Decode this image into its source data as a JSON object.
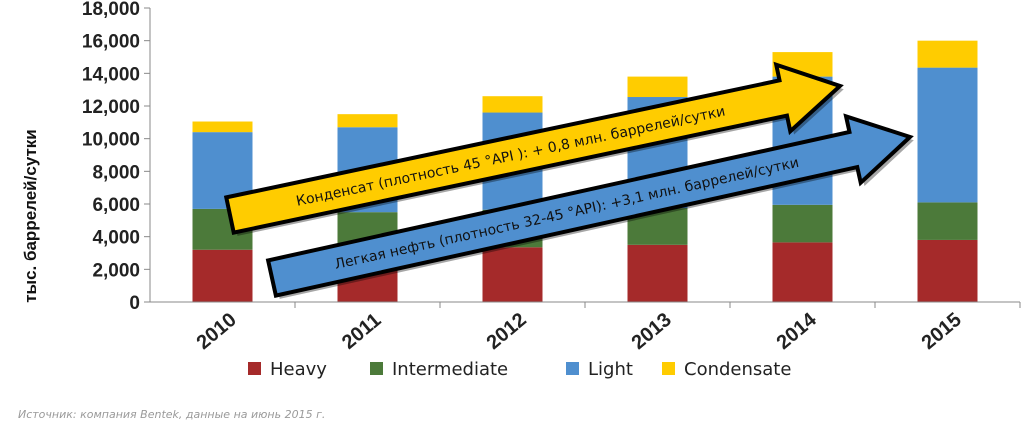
{
  "chart_data": {
    "type": "bar",
    "stacked": true,
    "categories": [
      "2010",
      "2011",
      "2012",
      "2013",
      "2014",
      "2015"
    ],
    "series": [
      {
        "name": "Heavy",
        "values": [
          3200,
          3100,
          3350,
          3500,
          3650,
          3800
        ]
      },
      {
        "name": "Intermediate",
        "values": [
          2500,
          2400,
          2300,
          2250,
          2300,
          2300
        ]
      },
      {
        "name": "Light",
        "values": [
          4700,
          5200,
          5950,
          6800,
          7850,
          8250
        ]
      },
      {
        "name": "Condensate",
        "values": [
          650,
          800,
          1000,
          1250,
          1500,
          1650
        ]
      }
    ],
    "ylabel": "тыс. баррелей/сутки",
    "ylim": [
      0,
      18000
    ],
    "yticks": [
      "0",
      "2,000",
      "4,000",
      "6,000",
      "8,000",
      "10,000",
      "12,000",
      "14,000",
      "16,000",
      "18,000"
    ],
    "legend_position": "bottom",
    "grid": false
  },
  "colors": {
    "Heavy": "#A52A2A",
    "Intermediate": "#4C7A3A",
    "Light": "#4F8FCF",
    "Condensate": "#FFCC00",
    "axis": "#888888"
  },
  "annotations": {
    "condensate_arrow": "Конденсат (плотность 45 °API ): +  0,8 млн. баррелей/сутки",
    "light_oil_arrow": "Легкая нефть (плотность 32-45 °API): +3,1 млн. баррелей/сутки"
  },
  "source": "Источник: компания Bentek, данные на июнь 2015 г."
}
